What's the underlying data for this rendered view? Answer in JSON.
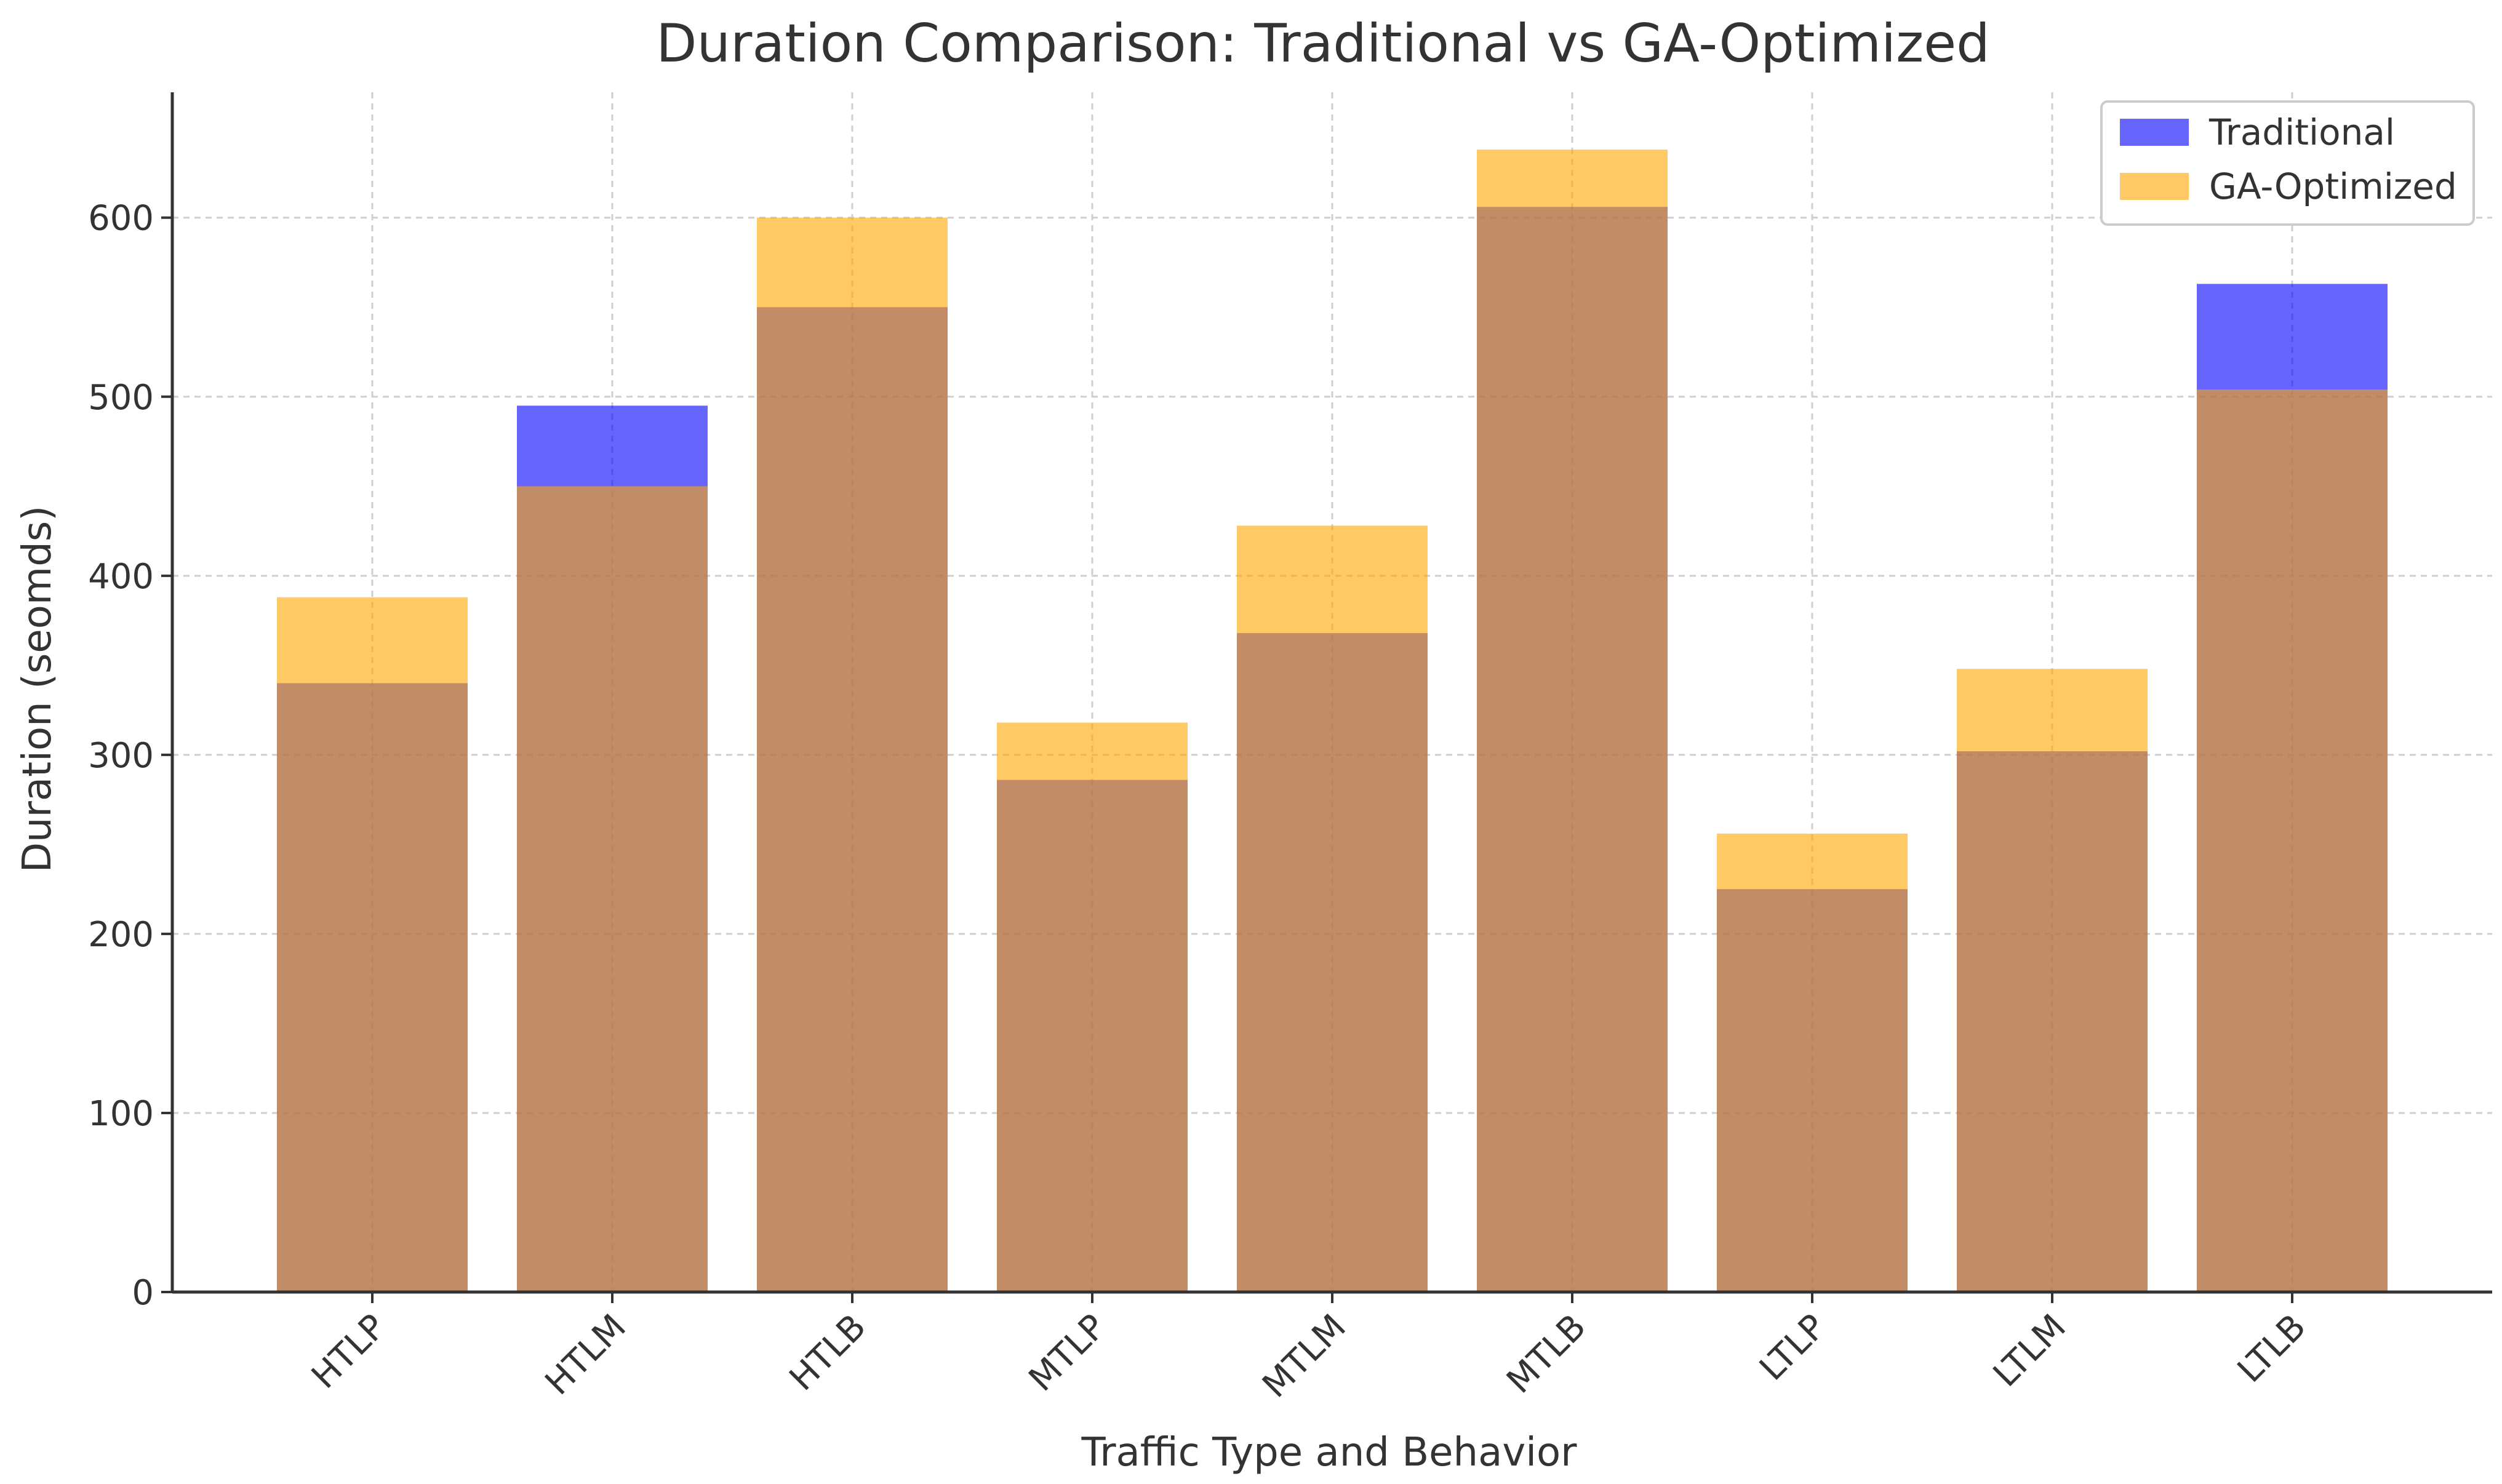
{
  "chart_data": {
    "type": "bar",
    "title": "Duration Comparison: Traditional vs GA-Optimized",
    "xlabel": "Traffic Type and Behavior",
    "ylabel": "Duration (seomds)",
    "categories": [
      "HTLP",
      "HTLM",
      "HTLB",
      "MTLP",
      "MTLM",
      "MTLB",
      "LTLP",
      "LTLM",
      "LTLB"
    ],
    "series": [
      {
        "name": "Traditional",
        "color": "#0000ff",
        "opacity": 0.6,
        "values": [
          340,
          495,
          550,
          286,
          368,
          606,
          225,
          302,
          563
        ]
      },
      {
        "name": "GA-Optimized",
        "color": "#ffa500",
        "opacity": 0.6,
        "values": [
          388,
          450,
          600,
          318,
          428,
          638,
          256,
          348,
          504
        ]
      }
    ],
    "ylim": [
      0,
      670
    ],
    "yticks": [
      0,
      100,
      200,
      300,
      400,
      500,
      600
    ],
    "grid": true,
    "legend_position": "top-right"
  }
}
